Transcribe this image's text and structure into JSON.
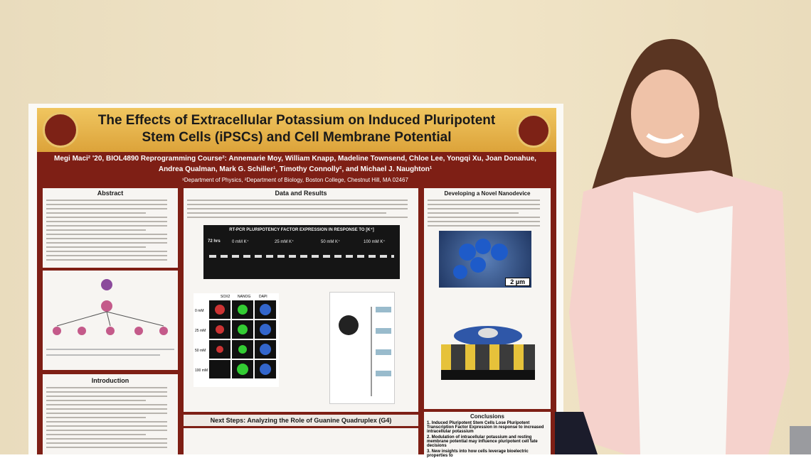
{
  "poster": {
    "title": [
      "The Effects of Extracellular Potassium on Induced Pluripotent",
      "Stem Cells (iPSCs) and Cell Membrane Potential"
    ],
    "authors": [
      "Megi Maci² '20, BIOL4890 Reprogramming Course²: Annemarie Moy, William Knapp, Madeline Townsend, Chloe Lee, Yongqi Xu, Joan Donahue,",
      "Andrea Qualman, Mark G. Schiller¹, Timothy Connolly², and Michael J. Naughton¹"
    ],
    "affiliations": "¹Department of Physics, ²Department of Biology, Boston College, Chestnut Hill, MA 02467",
    "sections": {
      "abstract": "Abstract",
      "results": "Data and Results",
      "nanodevice": "Developing a Novel Nanodevice",
      "introduction": "Introduction",
      "next_steps": "Next Steps: Analyzing the Role of Guanine Quadruplex (G4)",
      "conclusions": "Conclusions"
    },
    "gel": {
      "title": "RT-PCR PLURIPOTENCY FACTOR EXPRESSION IN RESPONSE TO [K⁺]",
      "time": "72 hrs",
      "conditions": [
        "0 mM K⁺",
        "25 mM K⁺",
        "50 mM K⁺",
        "100 mM K⁺"
      ]
    },
    "immunofluorescence": {
      "columns": [
        "SOX2",
        "NANOG",
        "DAPI"
      ],
      "rows": [
        "0 mM",
        "25 mM",
        "50 mM",
        "100 mM"
      ]
    },
    "scale_bar": "2 µm",
    "conclusions": [
      "1. Induced Pluripotent Stem Cells Lose Pluripotent Transcription Factor Expression in response to increased intracellular potassium",
      "2. Modulation of intracellular potassium and resting membrane potential may influence pluripotent cell fate decisions",
      "3. New insights into how cells leverage bioelectric properties to"
    ]
  }
}
